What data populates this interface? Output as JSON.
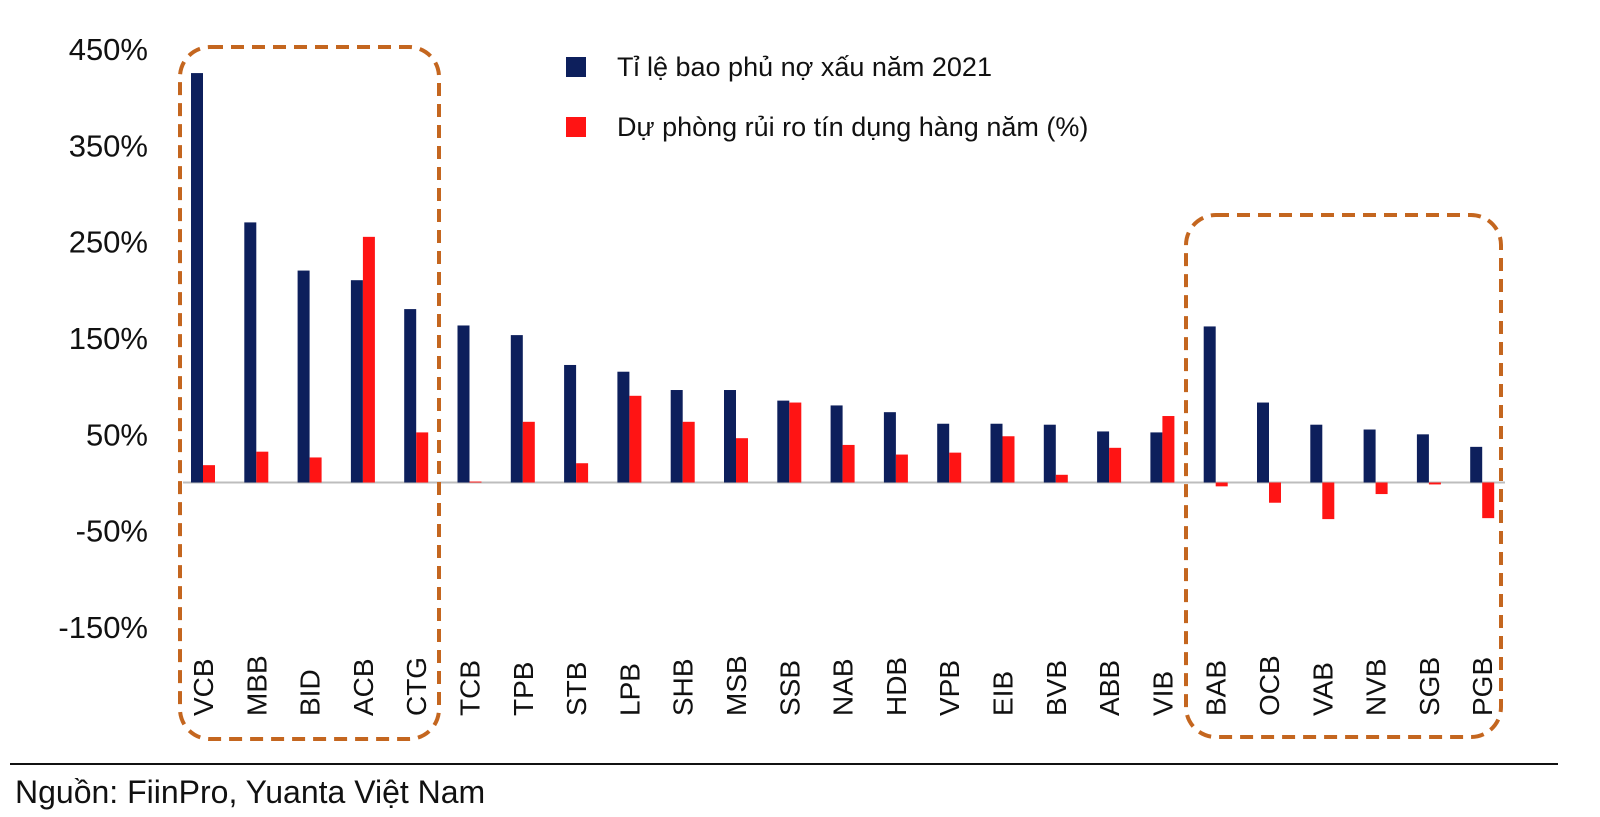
{
  "chart_data": {
    "type": "bar",
    "title": "",
    "xlabel": "",
    "ylabel": "",
    "ylim": [
      -150,
      450
    ],
    "yticks": [
      450,
      350,
      250,
      150,
      50,
      -50,
      -150
    ],
    "ytick_labels": [
      "450%",
      "350%",
      "250%",
      "150%",
      "50%",
      "-50%",
      "-150%"
    ],
    "grid": false,
    "legend_position": "top-center",
    "categories": [
      "VCB",
      "MBB",
      "BID",
      "ACB",
      "CTG",
      "TCB",
      "TPB",
      "STB",
      "LPB",
      "SHB",
      "MSB",
      "SSB",
      "NAB",
      "HDB",
      "VPB",
      "EIB",
      "BVB",
      "ABB",
      "VIB",
      "BAB",
      "OCB",
      "VAB",
      "NVB",
      "SGB",
      "PGB"
    ],
    "series": [
      {
        "name": "Tỉ lệ bao phủ nợ xấu năm 2021",
        "color": "#0d1f5c",
        "values": [
          425,
          270,
          220,
          210,
          180,
          163,
          153,
          122,
          115,
          96,
          96,
          85,
          80,
          73,
          61,
          61,
          60,
          53,
          52,
          162,
          83,
          60,
          55,
          50,
          37
        ]
      },
      {
        "name": "Dự phòng rủi ro tín dụng hàng năm (%)",
        "color": "#ff1414",
        "values": [
          18,
          32,
          26,
          255,
          52,
          1,
          63,
          20,
          90,
          63,
          46,
          83,
          39,
          29,
          31,
          48,
          8,
          36,
          69,
          -4,
          -21,
          -38,
          -12,
          -2,
          -37
        ]
      }
    ],
    "highlight_groups": [
      {
        "style": "dashed-rounded-box",
        "color": "#c4661f",
        "from": "VCB",
        "to": "CTG"
      },
      {
        "style": "dashed-rounded-box",
        "color": "#c4661f",
        "from": "BAB",
        "to": "PGB"
      }
    ]
  },
  "source": "Nguồn: FiinPro, Yuanta Việt Nam"
}
